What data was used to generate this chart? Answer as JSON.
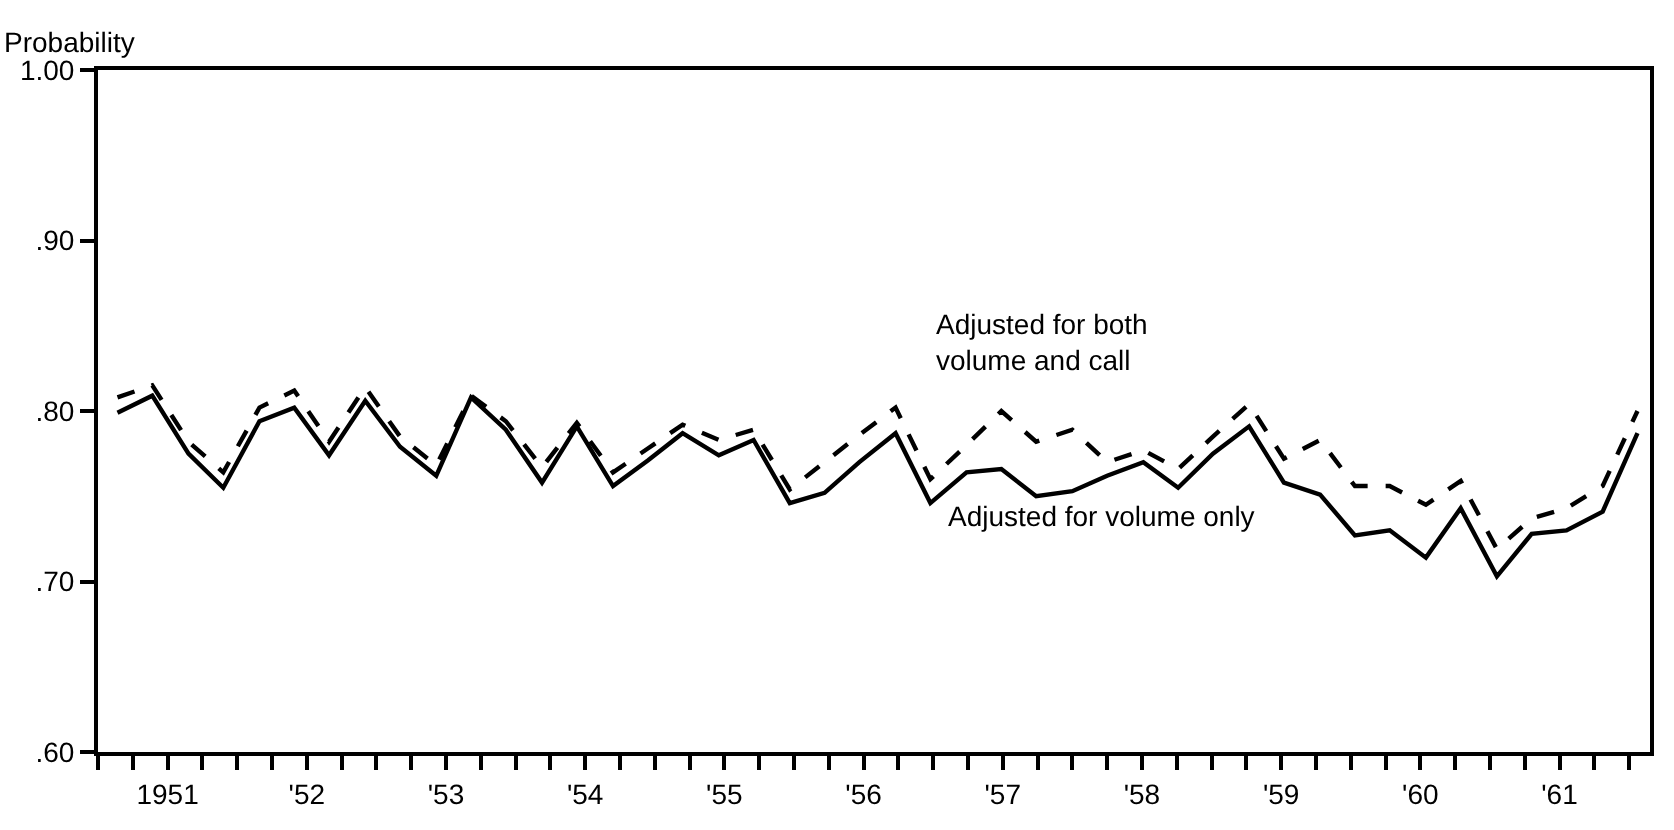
{
  "chart_data": {
    "type": "line",
    "ylabel": "Probability",
    "xlim": [
      1950.5,
      1961.65
    ],
    "ylim": [
      0.6,
      1.0
    ],
    "yticks": [
      {
        "value": 0.6,
        "label": ".60"
      },
      {
        "value": 0.7,
        "label": ".70"
      },
      {
        "value": 0.8,
        "label": ".80"
      },
      {
        "value": 0.9,
        "label": ".90"
      },
      {
        "value": 1.0,
        "label": "1.00"
      }
    ],
    "xticks": [
      {
        "value": 1950.5,
        "label": null
      },
      {
        "value": 1950.75,
        "label": null
      },
      {
        "value": 1951,
        "label": "1951"
      },
      {
        "value": 1951.25,
        "label": null
      },
      {
        "value": 1951.5,
        "label": null
      },
      {
        "value": 1951.75,
        "label": null
      },
      {
        "value": 1952,
        "label": "'52"
      },
      {
        "value": 1952.25,
        "label": null
      },
      {
        "value": 1952.5,
        "label": null
      },
      {
        "value": 1952.75,
        "label": null
      },
      {
        "value": 1953,
        "label": "'53"
      },
      {
        "value": 1953.25,
        "label": null
      },
      {
        "value": 1953.5,
        "label": null
      },
      {
        "value": 1953.75,
        "label": null
      },
      {
        "value": 1954,
        "label": "'54"
      },
      {
        "value": 1954.25,
        "label": null
      },
      {
        "value": 1954.5,
        "label": null
      },
      {
        "value": 1954.75,
        "label": null
      },
      {
        "value": 1955,
        "label": "'55"
      },
      {
        "value": 1955.25,
        "label": null
      },
      {
        "value": 1955.5,
        "label": null
      },
      {
        "value": 1955.75,
        "label": null
      },
      {
        "value": 1956,
        "label": "'56"
      },
      {
        "value": 1956.25,
        "label": null
      },
      {
        "value": 1956.5,
        "label": null
      },
      {
        "value": 1956.75,
        "label": null
      },
      {
        "value": 1957,
        "label": "'57"
      },
      {
        "value": 1957.25,
        "label": null
      },
      {
        "value": 1957.5,
        "label": null
      },
      {
        "value": 1957.75,
        "label": null
      },
      {
        "value": 1958,
        "label": "'58"
      },
      {
        "value": 1958.25,
        "label": null
      },
      {
        "value": 1958.5,
        "label": null
      },
      {
        "value": 1958.75,
        "label": null
      },
      {
        "value": 1959,
        "label": "'59"
      },
      {
        "value": 1959.25,
        "label": null
      },
      {
        "value": 1959.5,
        "label": null
      },
      {
        "value": 1959.75,
        "label": null
      },
      {
        "value": 1960,
        "label": "'60"
      },
      {
        "value": 1960.25,
        "label": null
      },
      {
        "value": 1960.5,
        "label": null
      },
      {
        "value": 1960.75,
        "label": null
      },
      {
        "value": 1961,
        "label": "'61"
      },
      {
        "value": 1961.25,
        "label": null
      },
      {
        "value": 1961.5,
        "label": null
      }
    ],
    "x": [
      1950.64,
      1950.89,
      1951.15,
      1951.4,
      1951.66,
      1951.91,
      1952.16,
      1952.42,
      1952.67,
      1952.93,
      1953.18,
      1953.43,
      1953.69,
      1953.94,
      1954.2,
      1954.45,
      1954.7,
      1954.96,
      1955.21,
      1955.47,
      1955.72,
      1955.97,
      1956.23,
      1956.48,
      1956.74,
      1956.99,
      1957.24,
      1957.5,
      1957.75,
      1958.01,
      1958.26,
      1958.51,
      1958.77,
      1959.02,
      1959.28,
      1959.53,
      1959.78,
      1960.04,
      1960.29,
      1960.55,
      1960.8,
      1961.05,
      1961.31,
      1961.56
    ],
    "series": [
      {
        "color": "#000000",
        "line_style": "dashed",
        "values": [
          0.808,
          0.815,
          0.782,
          0.764,
          0.802,
          0.812,
          0.782,
          0.814,
          0.785,
          0.768,
          0.809,
          0.794,
          0.767,
          0.793,
          0.764,
          0.778,
          0.792,
          0.783,
          0.789,
          0.754,
          0.77,
          0.786,
          0.802,
          0.76,
          0.78,
          0.8,
          0.782,
          0.789,
          0.77,
          0.777,
          0.766,
          0.785,
          0.804,
          0.772,
          0.783,
          0.756,
          0.756,
          0.745,
          0.759,
          0.719,
          0.737,
          0.743,
          0.756,
          0.8
        ]
      },
      {
        "color": "#000000",
        "line_style": "solid",
        "values": [
          0.799,
          0.809,
          0.775,
          0.755,
          0.794,
          0.802,
          0.774,
          0.806,
          0.779,
          0.762,
          0.808,
          0.789,
          0.758,
          0.791,
          0.756,
          0.771,
          0.787,
          0.774,
          0.783,
          0.746,
          0.752,
          0.77,
          0.787,
          0.746,
          0.764,
          0.766,
          0.75,
          0.753,
          0.762,
          0.77,
          0.755,
          0.775,
          0.791,
          0.758,
          0.751,
          0.727,
          0.73,
          0.714,
          0.743,
          0.703,
          0.728,
          0.73,
          0.741,
          0.787
        ]
      }
    ],
    "annotations": [
      "Adjusted for both\nvolume and call",
      "Adjusted for volume only"
    ],
    "marker": "none"
  }
}
